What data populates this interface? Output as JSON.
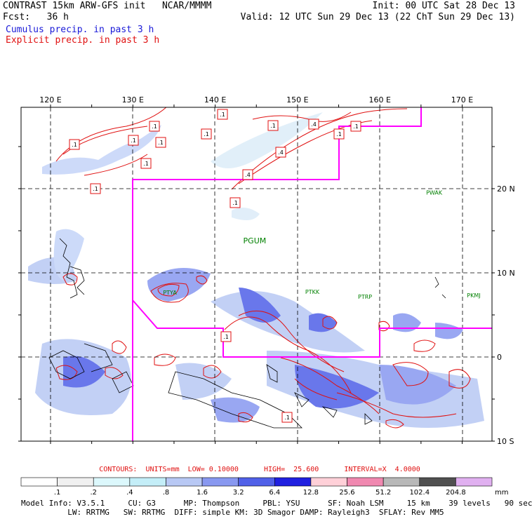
{
  "header": {
    "title": "CONTRAST 15km ARW-GFS init   NCAR/MMMM",
    "fcst": "Fcst:   36 h",
    "init": "Init: 00 UTC Sat 28 Dec 13",
    "valid": "Valid: 12 UTC Sun 29 Dec 13 (22 ChT Sun 29 Dec 13)",
    "legend_cumulus": "Cumulus precip. in past 3 h",
    "legend_explicit": "Explicit precip. in past 3 h"
  },
  "map": {
    "lon_labels": [
      "120 E",
      "130 E",
      "140 E",
      "150 E",
      "160 E",
      "170 E"
    ],
    "lat_labels": [
      "20 N",
      "10 N",
      "0",
      "10 S"
    ],
    "stations": [
      {
        "id": "PWAK",
        "lon": 166.6,
        "lat": 19.3
      },
      {
        "id": "PGUM",
        "lon": 144.8,
        "lat": 13.5
      },
      {
        "id": "PTYA",
        "lon": 134.5,
        "lat": 7.4
      },
      {
        "id": "PTKK",
        "lon": 151.8,
        "lat": 7.5
      },
      {
        "id": "PTRP",
        "lon": 158.2,
        "lat": 6.9
      },
      {
        "id": "PKMJ",
        "lon": 171.4,
        "lat": 7.1
      }
    ],
    "contour_labels": [
      ".1",
      ".1",
      ".1",
      ".1",
      ".1",
      ".1",
      ".1",
      ".1",
      ".1",
      ".1",
      ".4",
      ".4",
      ".4",
      ".1",
      ".1",
      ".1",
      ".1"
    ],
    "colors": {
      "flight_region": "#ff00ff",
      "explicit_contours": "#e01010",
      "station_text": "#008000"
    }
  },
  "contours_line": "CONTOURS:  UNITS=mm  LOW= 0.10000      HIGH=  25.600      INTERVAL=X  4.0000",
  "colorbar": {
    "unit": "mm",
    "ticks": [
      ".1",
      ".2",
      ".4",
      ".8",
      "1.6",
      "3.2",
      "6.4",
      "12.8",
      "25.6",
      "51.2",
      "102.4",
      "204.8"
    ],
    "colors": [
      "#ffffff",
      "#f0f0f0",
      "#dcf8fc",
      "#c4eef8",
      "#b8c8f4",
      "#8898f0",
      "#5060e8",
      "#2020e0",
      "#ffd0d8",
      "#f088b0",
      "#b8b8b8",
      "#505050",
      "#e0b0f0"
    ]
  },
  "model_info": {
    "line1": "Model Info: V3.5.1     CU: G3      MP: Thompson     PBL: YSU      SF: Noah LSM     15 km    39 levels   90 sec",
    "line2": "          LW: RRTMG   SW: RRTMG  DIFF: simple KM: 3D Smagor DAMP: Rayleigh3  SFLAY: Rev MM5"
  }
}
